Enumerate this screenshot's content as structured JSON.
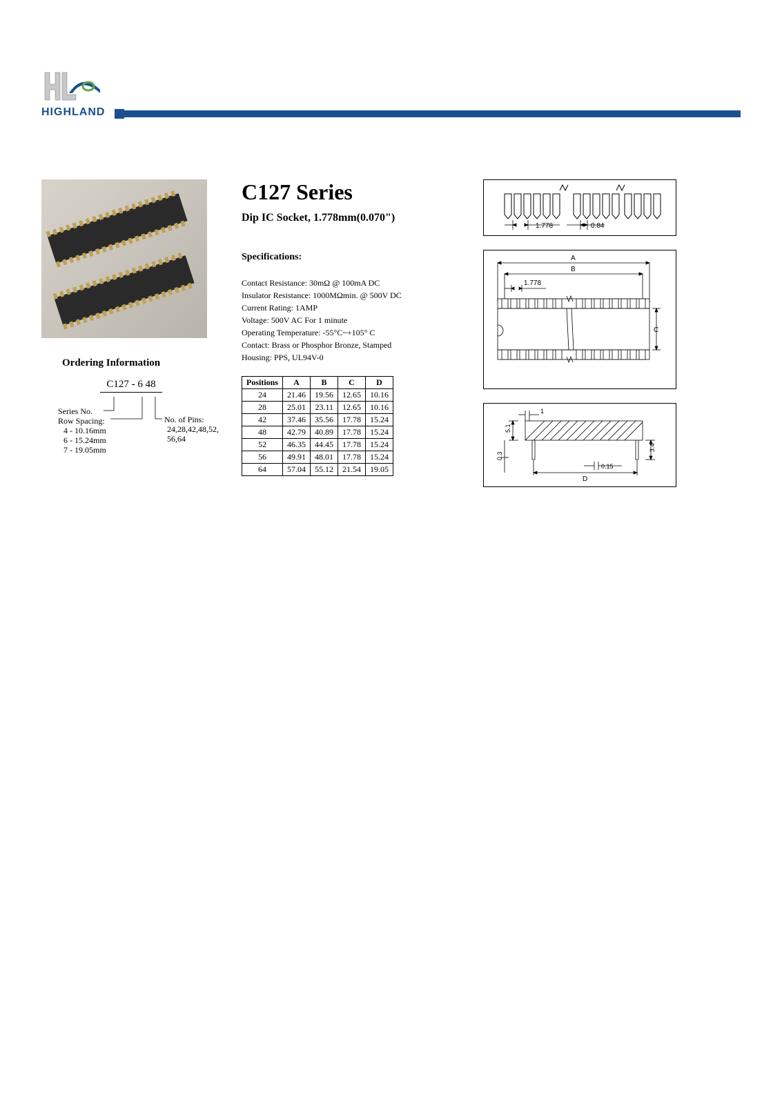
{
  "brand": "HIGHLAND",
  "title": "C127 Series",
  "subtitle": "Dip IC Socket, 1.778mm(0.070\")",
  "ordering": {
    "heading": "Ordering Information",
    "code": "C127 - 6 48",
    "series_label": "Series No.",
    "row_spacing_label": "Row Spacing:",
    "row_spacing_lines": [
      "4 - 10.16mm",
      "6 - 15.24mm",
      "7 - 19.05mm"
    ],
    "pins_label": "No. of Pins:",
    "pins_lines": [
      "24,28,42,48,52,",
      "56,64"
    ]
  },
  "specs": {
    "heading": "Specifications:",
    "lines": [
      "Contact Resistance: 30mΩ @ 100mA DC",
      "Insulator Resistance: 1000MΩmin.  @ 500V DC",
      "Current Rating: 1AMP",
      "Voltage: 500V AC For 1 minute",
      "Operating Temperature: -55°C~+105° C",
      "Contact: Brass or Phosphor Bronze, Stamped",
      "Housing: PPS, UL94V-0"
    ]
  },
  "table": {
    "headers": [
      "Positions",
      "A",
      "B",
      "C",
      "D"
    ],
    "rows": [
      [
        "24",
        "21.46",
        "19.56",
        "12.65",
        "10.16"
      ],
      [
        "28",
        "25.01",
        "23.11",
        "12.65",
        "10.16"
      ],
      [
        "42",
        "37.46",
        "35.56",
        "17.78",
        "15.24"
      ],
      [
        "48",
        "42.79",
        "40.89",
        "17.78",
        "15.24"
      ],
      [
        "52",
        "46.35",
        "44.45",
        "17.78",
        "15.24"
      ],
      [
        "56",
        "49.91",
        "48.01",
        "17.78",
        "15.24"
      ],
      [
        "64",
        "57.04",
        "55.12",
        "21.54",
        "19.05"
      ]
    ]
  },
  "diagram1": {
    "dims": [
      "1.778",
      "0.84"
    ]
  },
  "diagram2": {
    "dims": [
      "A",
      "B",
      "1.778",
      "C"
    ]
  },
  "diagram3": {
    "dims": [
      "1",
      "5.1",
      "0.3",
      "0.15",
      "3.4",
      "D"
    ]
  },
  "colors": {
    "brand_blue": "#1a4f8f",
    "text": "#000000",
    "bg": "#ffffff"
  }
}
